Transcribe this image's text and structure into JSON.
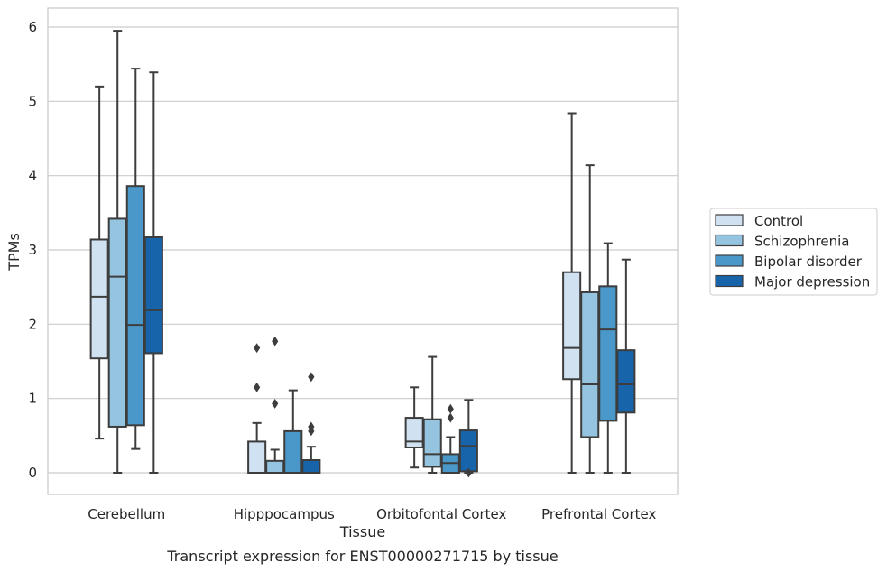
{
  "chart_data": {
    "type": "boxplot",
    "title": "",
    "caption": "Transcript expression for ENST00000271715 by tissue",
    "xlabel": "Tissue",
    "ylabel": "TPMs",
    "ylim": [
      -0.3,
      6.25
    ],
    "yticks": [
      0,
      1,
      2,
      3,
      4,
      5,
      6
    ],
    "grid": "horizontal",
    "legend_position": "right",
    "categories": [
      "Cerebellum",
      "Hipppocampus",
      "Orbitofontal Cortex",
      "Prefrontal Cortex"
    ],
    "series": [
      {
        "name": "Control",
        "color": "#d0e1f2",
        "boxes": [
          {
            "whislo": 0.46,
            "q1": 1.54,
            "med": 2.37,
            "q3": 3.14,
            "whishi": 5.2,
            "fliers": []
          },
          {
            "whislo": 0.0,
            "q1": 0.0,
            "med": 0.0,
            "q3": 0.42,
            "whishi": 0.67,
            "fliers": [
              1.15,
              1.68
            ]
          },
          {
            "whislo": 0.07,
            "q1": 0.34,
            "med": 0.42,
            "q3": 0.74,
            "whishi": 1.15,
            "fliers": []
          },
          {
            "whislo": 0.0,
            "q1": 1.26,
            "med": 1.68,
            "q3": 2.7,
            "whishi": 4.84,
            "fliers": []
          }
        ]
      },
      {
        "name": "Schizophrenia",
        "color": "#94c4df",
        "boxes": [
          {
            "whislo": 0.0,
            "q1": 0.62,
            "med": 2.64,
            "q3": 3.42,
            "whishi": 5.95,
            "fliers": []
          },
          {
            "whislo": 0.0,
            "q1": 0.0,
            "med": 0.0,
            "q3": 0.16,
            "whishi": 0.31,
            "fliers": [
              0.93,
              1.77
            ]
          },
          {
            "whislo": 0.0,
            "q1": 0.08,
            "med": 0.25,
            "q3": 0.72,
            "whishi": 1.56,
            "fliers": []
          },
          {
            "whislo": 0.0,
            "q1": 0.48,
            "med": 1.19,
            "q3": 2.43,
            "whishi": 4.14,
            "fliers": []
          }
        ]
      },
      {
        "name": "Bipolar disorder",
        "color": "#4a98c9",
        "boxes": [
          {
            "whislo": 0.32,
            "q1": 0.64,
            "med": 1.99,
            "q3": 3.86,
            "whishi": 5.44,
            "fliers": []
          },
          {
            "whislo": 0.0,
            "q1": 0.0,
            "med": 0.0,
            "q3": 0.56,
            "whishi": 1.11,
            "fliers": []
          },
          {
            "whislo": 0.0,
            "q1": 0.0,
            "med": 0.13,
            "q3": 0.25,
            "whishi": 0.48,
            "fliers": [
              0.74,
              0.86
            ]
          },
          {
            "whislo": 0.0,
            "q1": 0.7,
            "med": 1.93,
            "q3": 2.51,
            "whishi": 3.09,
            "fliers": []
          }
        ]
      },
      {
        "name": "Major depression",
        "color": "#1764ab",
        "boxes": [
          {
            "whislo": 0.0,
            "q1": 1.61,
            "med": 2.19,
            "q3": 3.17,
            "whishi": 5.39,
            "fliers": []
          },
          {
            "whislo": 0.0,
            "q1": 0.0,
            "med": 0.0,
            "q3": 0.17,
            "whishi": 0.35,
            "fliers": [
              0.56,
              0.62,
              1.29
            ]
          },
          {
            "whislo": 0.0,
            "q1": 0.02,
            "med": 0.36,
            "q3": 0.57,
            "whishi": 0.98,
            "fliers": [
              0.0
            ]
          },
          {
            "whislo": 0.0,
            "q1": 0.81,
            "med": 1.19,
            "q3": 1.65,
            "whishi": 2.87,
            "fliers": []
          }
        ]
      }
    ]
  }
}
